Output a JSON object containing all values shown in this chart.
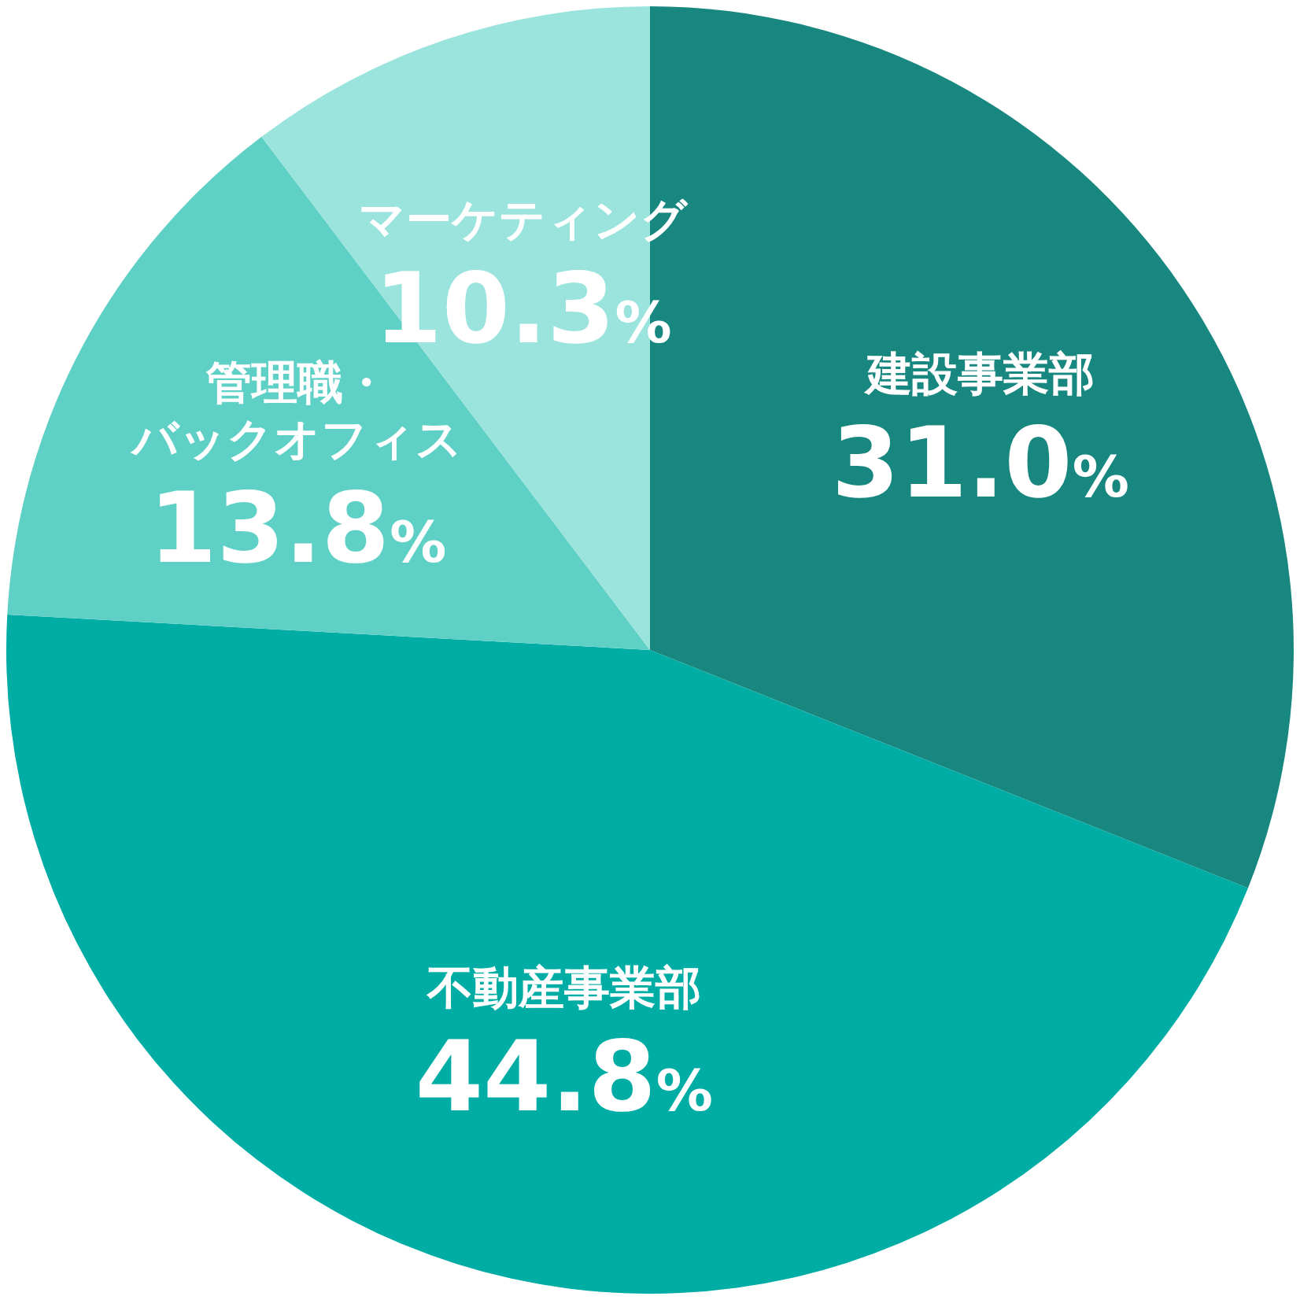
{
  "chart_data": {
    "type": "pie",
    "categories": [
      "建設事業部",
      "不動産事業部",
      "管理職・バックオフィス",
      "マーケティング"
    ],
    "values": [
      31.0,
      44.8,
      13.8,
      10.3
    ],
    "colors": [
      "#17877f",
      "#00ada5",
      "#5fd0c5",
      "#9be4dd"
    ],
    "value_labels": [
      "31.0%",
      "44.8%",
      "13.8%",
      "10.3%"
    ]
  }
}
